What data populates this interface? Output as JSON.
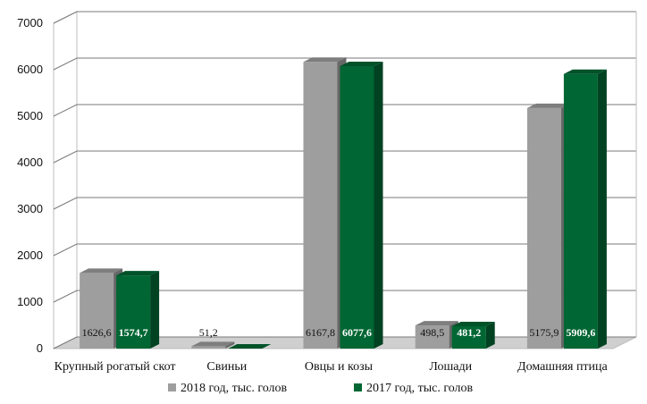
{
  "chart_data": {
    "type": "bar",
    "categories": [
      "Крупный рогатый скот",
      "Свиньи",
      "Овцы и козы",
      "Лошади",
      "Домашняя птица"
    ],
    "series": [
      {
        "name": "2018 год, тыс. голов",
        "values": [
          1626.6,
          51.2,
          6167.8,
          498.5,
          5175.9
        ],
        "labels": [
          "1626,6",
          "51,2",
          "6167,8",
          "498,5",
          "5175,9"
        ],
        "color": "#9e9e9e"
      },
      {
        "name": "2017 год, тыс. голов",
        "values": [
          1574.7,
          0,
          6077.6,
          481.2,
          5909.6
        ],
        "labels": [
          "1574,7",
          "",
          "6077,6",
          "481,2",
          "5909,6"
        ],
        "color": "#006633"
      }
    ],
    "y_ticks": [
      "0",
      "1000",
      "2000",
      "3000",
      "4000",
      "5000",
      "6000",
      "7000"
    ],
    "ylim": [
      0,
      7000
    ],
    "grid": true,
    "legend_position": "bottom",
    "style": "3d-bar"
  }
}
